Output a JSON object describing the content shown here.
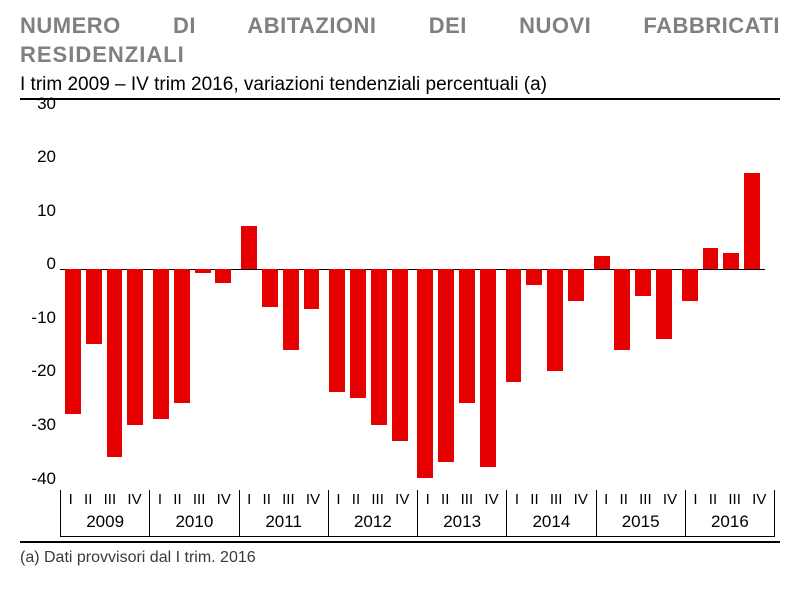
{
  "title_line1": "NUMERO DI ABITAZIONI DEI NUOVI FABBRICATI",
  "title_line2": "RESIDENZIALI",
  "subtitle": "I trim 2009 – IV trim 2016, variazioni tendenziali percentuali (a)",
  "footnote": "(a) Dati provvisori dal I trim. 2016",
  "chart": {
    "type": "bar",
    "ylim": [
      -40,
      30
    ],
    "ytick_step": 10,
    "y_ticks": [
      -40,
      -30,
      -20,
      -10,
      0,
      10,
      20,
      30
    ],
    "bar_color": "#e60000",
    "background_color": "#ffffff",
    "axis_color": "#000000",
    "title_color": "#808080",
    "label_fontsize": 17,
    "title_fontsize": 22,
    "years": [
      2009,
      2010,
      2011,
      2012,
      2013,
      2014,
      2015,
      2016
    ],
    "quarter_labels": [
      "I",
      "II",
      "III",
      "IV"
    ],
    "bars": [
      {
        "year": 2009,
        "q": 1,
        "value": -27
      },
      {
        "year": 2009,
        "q": 2,
        "value": -14
      },
      {
        "year": 2009,
        "q": 3,
        "value": -35
      },
      {
        "year": 2009,
        "q": 4,
        "value": -29
      },
      {
        "year": 2010,
        "q": 1,
        "value": -28
      },
      {
        "year": 2010,
        "q": 2,
        "value": -25
      },
      {
        "year": 2010,
        "q": 3,
        "value": -0.8
      },
      {
        "year": 2010,
        "q": 4,
        "value": -2.5
      },
      {
        "year": 2011,
        "q": 1,
        "value": 8
      },
      {
        "year": 2011,
        "q": 2,
        "value": -7
      },
      {
        "year": 2011,
        "q": 3,
        "value": -15
      },
      {
        "year": 2011,
        "q": 4,
        "value": -7.5
      },
      {
        "year": 2012,
        "q": 1,
        "value": -23
      },
      {
        "year": 2012,
        "q": 2,
        "value": -24
      },
      {
        "year": 2012,
        "q": 3,
        "value": -29
      },
      {
        "year": 2012,
        "q": 4,
        "value": -32
      },
      {
        "year": 2013,
        "q": 1,
        "value": -39
      },
      {
        "year": 2013,
        "q": 2,
        "value": -36
      },
      {
        "year": 2013,
        "q": 3,
        "value": -25
      },
      {
        "year": 2013,
        "q": 4,
        "value": -37
      },
      {
        "year": 2014,
        "q": 1,
        "value": -21
      },
      {
        "year": 2014,
        "q": 2,
        "value": -3
      },
      {
        "year": 2014,
        "q": 3,
        "value": -19
      },
      {
        "year": 2014,
        "q": 4,
        "value": -6
      },
      {
        "year": 2015,
        "q": 1,
        "value": 2.5
      },
      {
        "year": 2015,
        "q": 2,
        "value": -15
      },
      {
        "year": 2015,
        "q": 3,
        "value": -5
      },
      {
        "year": 2015,
        "q": 4,
        "value": -13
      },
      {
        "year": 2016,
        "q": 1,
        "value": -6
      },
      {
        "year": 2016,
        "q": 2,
        "value": 4
      },
      {
        "year": 2016,
        "q": 3,
        "value": 3
      },
      {
        "year": 2016,
        "q": 4,
        "value": 18
      }
    ]
  }
}
